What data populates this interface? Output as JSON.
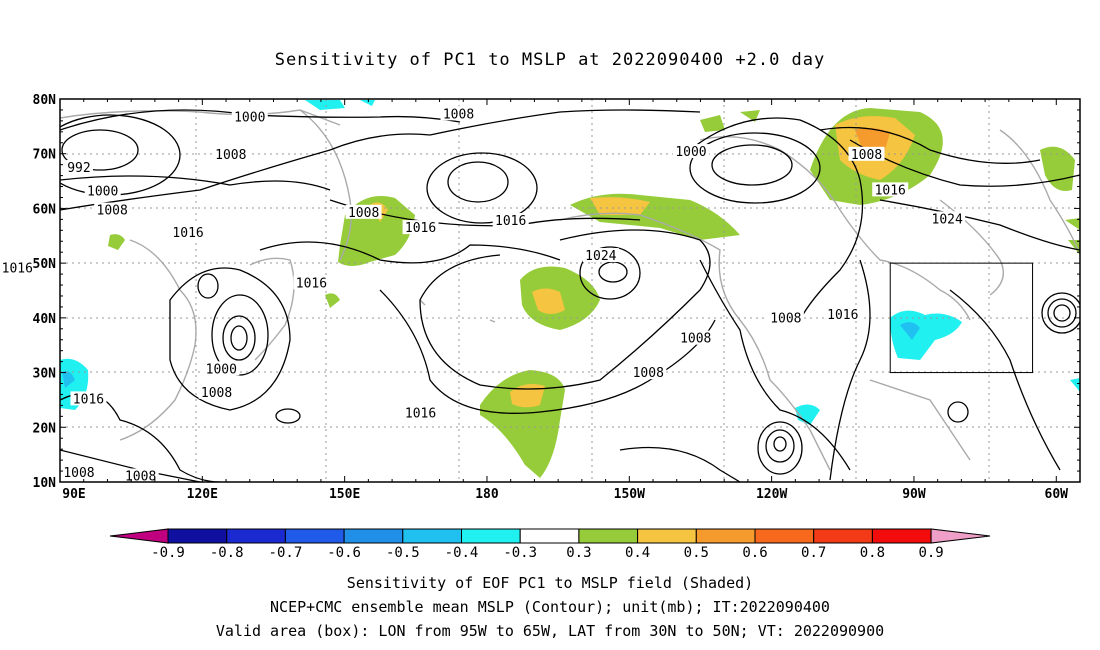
{
  "title": "Sensitivity of PC1 to MSLP at 2022090400 +2.0 day",
  "lat_ticks": [
    "80N",
    "70N",
    "60N",
    "50N",
    "40N",
    "30N",
    "20N",
    "10N"
  ],
  "lon_ticks": [
    "90E",
    "120E",
    "150E",
    "180",
    "150W",
    "120W",
    "90W",
    "60W"
  ],
  "contour_labels": [
    {
      "text": "1000",
      "lon": 130,
      "lat": 76.6
    },
    {
      "text": "1008",
      "lon": 174,
      "lat": 77.2
    },
    {
      "text": "1008",
      "lon": 126,
      "lat": 69.8
    },
    {
      "text": "992",
      "lon": 94,
      "lat": 67.4
    },
    {
      "text": "1000",
      "lon": 99,
      "lat": 63.1
    },
    {
      "text": "1008",
      "lon": 101,
      "lat": 59.6
    },
    {
      "text": "1000",
      "lon": 223,
      "lat": 70.3
    },
    {
      "text": "1008",
      "lon": 260,
      "lat": 69.8
    },
    {
      "text": "1016",
      "lon": 265,
      "lat": 63.3
    },
    {
      "text": "1024",
      "lon": 277,
      "lat": 58.0
    },
    {
      "text": "1008",
      "lon": 154,
      "lat": 59.2
    },
    {
      "text": "1016",
      "lon": 166,
      "lat": 56.4
    },
    {
      "text": "1016",
      "lon": 185,
      "lat": 57.7
    },
    {
      "text": "1016",
      "lon": 117,
      "lat": 55.5
    },
    {
      "text": "1024",
      "lon": 204,
      "lat": 51.3
    },
    {
      "text": "1016",
      "lon": 143,
      "lat": 46.3
    },
    {
      "text": "1016",
      "lon": 81,
      "lat": 49.0
    },
    {
      "text": "1008",
      "lon": 224,
      "lat": 36.2
    },
    {
      "text": "1008",
      "lon": 243,
      "lat": 39.9
    },
    {
      "text": "1016",
      "lon": 255,
      "lat": 40.5
    },
    {
      "text": "1000",
      "lon": 124,
      "lat": 30.6
    },
    {
      "text": "1008",
      "lon": 123,
      "lat": 26.3
    },
    {
      "text": "1016",
      "lon": 96,
      "lat": 25.1
    },
    {
      "text": "1016",
      "lon": 166,
      "lat": 22.5
    },
    {
      "text": "1008",
      "lon": 214,
      "lat": 29.9
    },
    {
      "text": "1008",
      "lon": 94,
      "lat": 11.6
    },
    {
      "text": "1008",
      "lon": 107,
      "lat": 11.0
    }
  ],
  "colorbar": {
    "labels": [
      "-0.9",
      "-0.8",
      "-0.7",
      "-0.6",
      "-0.5",
      "-0.4",
      "-0.3",
      "0.3",
      "0.4",
      "0.5",
      "0.6",
      "0.7",
      "0.8",
      "0.9"
    ],
    "colors": [
      "#c0007f",
      "#1010a0",
      "#1a2ad0",
      "#1f5ae8",
      "#1f8fe8",
      "#20c0f0",
      "#20f0f0",
      "#ffffff",
      "#96cc3a",
      "#f5c440",
      "#f59a2c",
      "#f76a1e",
      "#f23a16",
      "#f20c0c",
      "#f0a0c8"
    ]
  },
  "valid_box": {
    "lon_w": 265,
    "lon_e": 295,
    "lat_s": 30,
    "lat_n": 50
  },
  "caption": {
    "line1": "Sensitivity of EOF PC1 to MSLP field (Shaded)",
    "line2": "NCEP+CMC ensemble mean MSLP (Contour); unit(mb); IT:2022090400",
    "line3": "Valid area (box): LON from 95W to 65W, LAT from 30N to 50N; VT: 2022090900"
  }
}
